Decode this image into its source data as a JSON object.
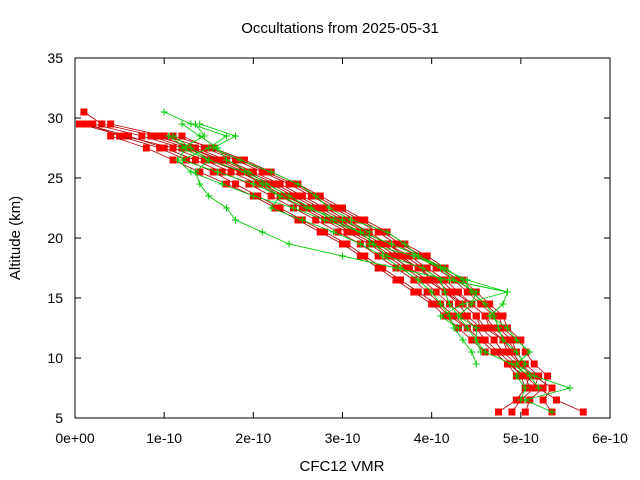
{
  "chart_data": {
    "type": "line",
    "title": "Occultations from 2025-05-31",
    "xlabel": "CFC12 VMR",
    "ylabel": "Altitude (km)",
    "xlim": [
      0,
      6e-10
    ],
    "ylim": [
      5,
      35
    ],
    "x_ticks": [
      0,
      1e-10,
      2e-10,
      3e-10,
      4e-10,
      5e-10,
      6e-10
    ],
    "x_tick_labels": [
      "0e+00",
      "1e-10",
      "2e-10",
      "3e-10",
      "4e-10",
      "5e-10",
      "6e-10"
    ],
    "y_ticks": [
      5,
      10,
      15,
      20,
      25,
      30,
      35
    ],
    "y_tick_labels": [
      "5",
      "10",
      "15",
      "20",
      "25",
      "30",
      "35"
    ],
    "grid": false,
    "legend": "none",
    "colors": {
      "retrieved": "#ff0000",
      "apriori": "#00cc00",
      "line_dark": "#b00000"
    },
    "altitudes": [
      5.5,
      6.5,
      7.5,
      8.5,
      9.5,
      10.5,
      11.5,
      12.5,
      13.5,
      14.5,
      15.5,
      16.5,
      17.5,
      18.5,
      19.5,
      20.5,
      21.5,
      22.5,
      23.5,
      24.5,
      25.5,
      26.5,
      27.5,
      28.5,
      29.5,
      30.5
    ],
    "series": [
      {
        "style": "red-square",
        "values": [
          4.75e-10,
          4.95e-10,
          5.05e-10,
          5.1e-10,
          5e-10,
          4.85e-10,
          4.8e-10,
          4.65e-10,
          4.6e-10,
          4.45e-10,
          4.3e-10,
          4.15e-10,
          3.95e-10,
          3.75e-10,
          3.5e-10,
          3.3e-10,
          3.05e-10,
          2.8e-10,
          2.55e-10,
          2.3e-10,
          2e-10,
          1.7e-10,
          1.35e-10,
          9e-11,
          3e-11,
          1e-11
        ]
      },
      {
        "style": "red-square",
        "values": [
          4.9e-10,
          5e-10,
          5.15e-10,
          5.2e-10,
          5.05e-10,
          4.95e-10,
          4.9e-10,
          4.75e-10,
          4.7e-10,
          4.55e-10,
          4.4e-10,
          4.25e-10,
          4.05e-10,
          3.85e-10,
          3.6e-10,
          3.4e-10,
          3.15e-10,
          2.9e-10,
          2.65e-10,
          2.4e-10,
          2.1e-10,
          1.8e-10,
          1.45e-10,
          1e-10,
          4e-11,
          null
        ]
      },
      {
        "style": "red-square",
        "values": [
          5.05e-10,
          5.1e-10,
          5.25e-10,
          5.3e-10,
          5.15e-10,
          5.05e-10,
          5e-10,
          4.85e-10,
          4.8e-10,
          4.65e-10,
          4.5e-10,
          4.35e-10,
          4.15e-10,
          3.95e-10,
          3.7e-10,
          3.5e-10,
          3.25e-10,
          3e-10,
          2.75e-10,
          2.5e-10,
          2.2e-10,
          1.9e-10,
          1.55e-10,
          1.1e-10,
          null,
          null
        ]
      },
      {
        "style": "red-square",
        "values": [
          5.35e-10,
          5.25e-10,
          5.35e-10,
          5.15e-10,
          5e-10,
          4.9e-10,
          4.8e-10,
          4.6e-10,
          4.5e-10,
          4.35e-10,
          4.15e-10,
          4e-10,
          3.85e-10,
          3.6e-10,
          3.4e-10,
          3.15e-10,
          2.9e-10,
          2.65e-10,
          2.35e-10,
          2.1e-10,
          1.85e-10,
          1.5e-10,
          1.2e-10,
          7.5e-11,
          2e-11,
          null
        ]
      },
      {
        "style": "red-square",
        "values": [
          5.7e-10,
          5.4e-10,
          5.2e-10,
          5.05e-10,
          4.85e-10,
          4.7e-10,
          4.55e-10,
          4.4e-10,
          4.25e-10,
          4.1e-10,
          3.95e-10,
          3.8e-10,
          3.6e-10,
          3.4e-10,
          3.2e-10,
          2.95e-10,
          2.7e-10,
          2.45e-10,
          2.2e-10,
          1.95e-10,
          1.65e-10,
          1.35e-10,
          1e-10,
          6e-11,
          1e-11,
          null
        ]
      },
      {
        "style": "red-square",
        "values": [
          null,
          4.95e-10,
          5.05e-10,
          5e-10,
          4.9e-10,
          4.75e-10,
          4.6e-10,
          4.5e-10,
          4.35e-10,
          4.2e-10,
          4.05e-10,
          3.9e-10,
          3.7e-10,
          3.5e-10,
          3.3e-10,
          3.05e-10,
          2.8e-10,
          2.55e-10,
          2.3e-10,
          2.05e-10,
          1.75e-10,
          1.45e-10,
          1.1e-10,
          5.5e-11,
          5e-12,
          null
        ]
      },
      {
        "style": "red-square",
        "values": [
          null,
          null,
          5.1e-10,
          5.05e-10,
          4.95e-10,
          4.8e-10,
          4.7e-10,
          4.55e-10,
          4.4e-10,
          4.3e-10,
          4.15e-10,
          3.95e-10,
          3.75e-10,
          3.55e-10,
          3.35e-10,
          3.1e-10,
          2.85e-10,
          2.6e-10,
          2.4e-10,
          2.15e-10,
          1.85e-10,
          1.55e-10,
          1.25e-10,
          8.5e-11,
          null,
          null
        ]
      },
      {
        "style": "red-square",
        "values": [
          null,
          null,
          null,
          4.95e-10,
          4.85e-10,
          4.7e-10,
          4.55e-10,
          4.4e-10,
          4.2e-10,
          4.05e-10,
          3.85e-10,
          3.65e-10,
          3.45e-10,
          3.25e-10,
          3.05e-10,
          2.8e-10,
          2.55e-10,
          2.3e-10,
          2.05e-10,
          1.8e-10,
          1.55e-10,
          1.25e-10,
          9.5e-11,
          5e-11,
          1.5e-11,
          null
        ]
      },
      {
        "style": "red-square",
        "values": [
          null,
          null,
          null,
          null,
          null,
          4.6e-10,
          4.45e-10,
          4.3e-10,
          4.15e-10,
          4e-10,
          3.8e-10,
          3.6e-10,
          3.4e-10,
          3.2e-10,
          3e-10,
          2.75e-10,
          2.5e-10,
          2.25e-10,
          2e-10,
          1.7e-10,
          1.4e-10,
          1.1e-10,
          8e-11,
          4e-11,
          null,
          null
        ]
      },
      {
        "style": "red-square",
        "values": [
          null,
          null,
          null,
          null,
          null,
          4.95e-10,
          4.85e-10,
          4.7e-10,
          4.6e-10,
          4.45e-10,
          4.25e-10,
          4.1e-10,
          3.9e-10,
          3.7e-10,
          3.5e-10,
          3.25e-10,
          3e-10,
          2.75e-10,
          2.5e-10,
          2.25e-10,
          1.95e-10,
          1.65e-10,
          1.3e-10,
          9.5e-11,
          null,
          null
        ]
      },
      {
        "style": "red-square",
        "values": [
          null,
          null,
          null,
          null,
          null,
          null,
          4.95e-10,
          4.8e-10,
          4.75e-10,
          4.6e-10,
          4.45e-10,
          4.3e-10,
          4.1e-10,
          3.9e-10,
          3.65e-10,
          3.45e-10,
          3.2e-10,
          2.95e-10,
          2.7e-10,
          2.45e-10,
          2.15e-10,
          1.85e-10,
          1.5e-10,
          1.2e-10,
          null,
          null
        ]
      },
      {
        "style": "red-square",
        "values": [
          null,
          null,
          null,
          null,
          null,
          null,
          null,
          4.55e-10,
          4.5e-10,
          4.35e-10,
          4.2e-10,
          4.05e-10,
          3.85e-10,
          3.65e-10,
          3.45e-10,
          3.2e-10,
          2.95e-10,
          2.7e-10,
          2.45e-10,
          2.2e-10,
          1.9e-10,
          1.6e-10,
          1.3e-10,
          null,
          null,
          null
        ]
      },
      {
        "style": "green-plus",
        "values": [
          5.35e-10,
          5.05e-10,
          5.55e-10,
          5.15e-10,
          4.95e-10,
          5.1e-10,
          4.95e-10,
          4.85e-10,
          4.65e-10,
          4.8e-10,
          4.85e-10,
          4.4e-10,
          4.1e-10,
          3.8e-10,
          3.3e-10,
          3.3e-10,
          3e-10,
          2.6e-10,
          2.3e-10,
          2e-10,
          1.6e-10,
          1.2e-10,
          1.5e-10,
          1.7e-10,
          1.3e-10,
          1e-10
        ]
      },
      {
        "style": "green-plus",
        "values": [
          null,
          5e-10,
          5.05e-10,
          4.95e-10,
          5.05e-10,
          4.95e-10,
          4.8e-10,
          4.75e-10,
          4.7e-10,
          4.6e-10,
          4.45e-10,
          4.35e-10,
          4.15e-10,
          3.85e-10,
          3.7e-10,
          3.5e-10,
          3.1e-10,
          2.85e-10,
          2.7e-10,
          2.5e-10,
          2.2e-10,
          1.85e-10,
          1.55e-10,
          1.8e-10,
          1.4e-10,
          null
        ]
      },
      {
        "style": "green-plus",
        "values": [
          null,
          null,
          5.2e-10,
          5.1e-10,
          4.9e-10,
          4.6e-10,
          4.5e-10,
          4.4e-10,
          4.3e-10,
          4.2e-10,
          4.15e-10,
          4.1e-10,
          3.9e-10,
          3.5e-10,
          3.35e-10,
          3.2e-10,
          2.9e-10,
          2.65e-10,
          2.4e-10,
          2.15e-10,
          1.95e-10,
          1.7e-10,
          1.6e-10,
          1.4e-10,
          1.2e-10,
          null
        ]
      },
      {
        "style": "green-plus",
        "values": [
          null,
          null,
          null,
          null,
          4.5e-10,
          4.45e-10,
          4.35e-10,
          4.25e-10,
          4.2e-10,
          4.1e-10,
          4e-10,
          3.85e-10,
          3.65e-10,
          3.45e-10,
          3.2e-10,
          2.9e-10,
          2.55e-10,
          2.2e-10,
          2.3e-10,
          2.1e-10,
          1.9e-10,
          1.5e-10,
          1.3e-10,
          1.1e-10,
          null,
          null
        ]
      },
      {
        "style": "green-plus",
        "values": [
          null,
          null,
          null,
          null,
          null,
          4.55e-10,
          4.5e-10,
          4.5e-10,
          4.3e-10,
          4.45e-10,
          4.5e-10,
          4.25e-10,
          4.1e-10,
          3.85e-10,
          3.55e-10,
          3.2e-10,
          2.8e-10,
          2.45e-10,
          2e-10,
          1.65e-10,
          1.3e-10,
          1.15e-10,
          1.25e-10,
          1.05e-10,
          null,
          null
        ]
      },
      {
        "style": "green-plus",
        "values": [
          null,
          null,
          null,
          null,
          null,
          null,
          null,
          4.3e-10,
          4.1e-10,
          4.35e-10,
          4.85e-10,
          4.2e-10,
          3.6e-10,
          3e-10,
          2.4e-10,
          2.1e-10,
          1.8e-10,
          1.7e-10,
          1.5e-10,
          1.4e-10,
          1.35e-10,
          1.5e-10,
          1.2e-10,
          1.45e-10,
          1.35e-10,
          null
        ]
      }
    ]
  }
}
